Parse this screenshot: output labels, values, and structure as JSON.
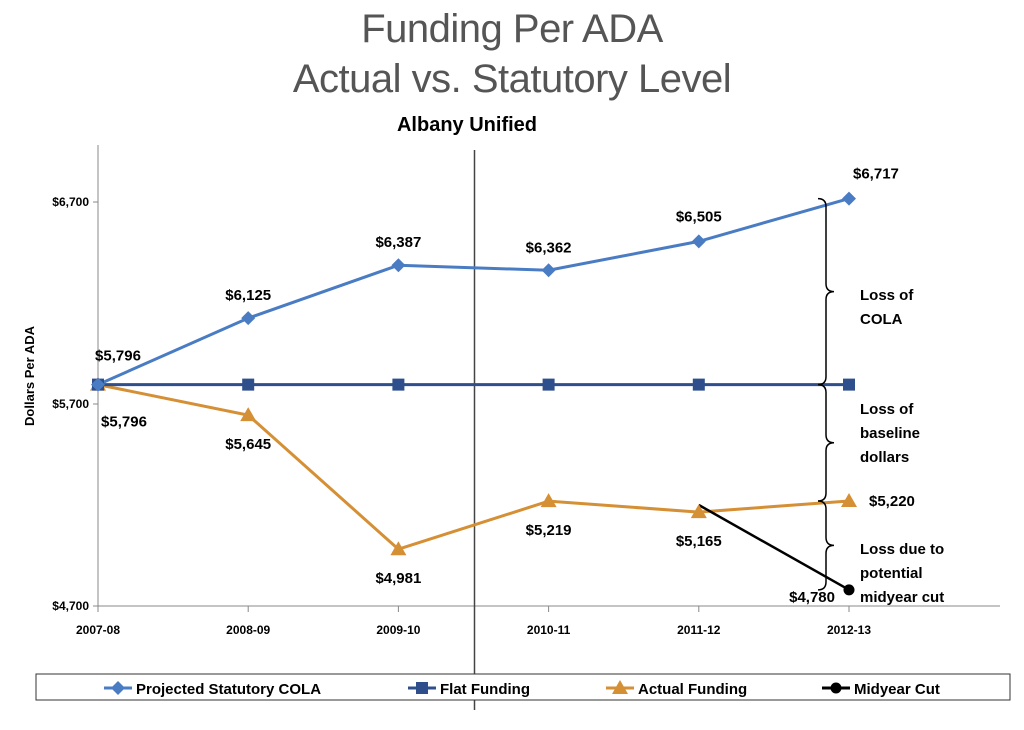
{
  "header": {
    "title_line1": "Funding Per ADA",
    "title_line2": "Actual vs. Statutory Level",
    "subtitle": "Albany Unified"
  },
  "chart_data": {
    "type": "line",
    "title": "Funding Per ADA Actual vs. Statutory Level",
    "subtitle": "Albany Unified",
    "xlabel": "",
    "ylabel": "Dollars Per ADA",
    "categories": [
      "2007-08",
      "2008-09",
      "2009-10",
      "2010-11",
      "2011-12",
      "2012-13"
    ],
    "ylim": [
      4700,
      7000
    ],
    "yticks": [
      4700,
      5700,
      6700
    ],
    "ytick_labels": [
      "$4,700",
      "$5,700",
      "$6,700"
    ],
    "grid": false,
    "legend_position": "bottom",
    "series": [
      {
        "name": "Projected Statutory COLA",
        "color": "#4a7cc4",
        "marker": "diamond",
        "values": [
          5796,
          6125,
          6387,
          6362,
          6505,
          6717
        ],
        "labels": [
          "$5,796",
          "$6,125",
          "$6,387",
          "$6,362",
          "$6,505",
          "$6,717"
        ]
      },
      {
        "name": "Flat Funding",
        "color": "#2e4e8c",
        "marker": "square",
        "values": [
          5796,
          5796,
          5796,
          5796,
          5796,
          5796
        ],
        "labels": []
      },
      {
        "name": "Actual Funding",
        "color": "#d58f35",
        "marker": "triangle",
        "values": [
          5796,
          5645,
          4981,
          5219,
          5165,
          5220
        ],
        "labels": [
          "$5,796",
          "$5,645",
          "$4,981",
          "$5,219",
          "$5,165",
          "$5,220"
        ]
      },
      {
        "name": "Midyear Cut",
        "color": "#000000",
        "marker": "circle",
        "x_start": "2011-12",
        "start_value": 5200,
        "x_end": "2012-13",
        "end_value": 4780,
        "labels": [
          "$4,780"
        ]
      }
    ],
    "vertical_marker_between": [
      "2009-10",
      "2010-11"
    ],
    "annotations": [
      {
        "text_lines": [
          "Loss of",
          "COLA"
        ],
        "from": 5796,
        "to": 6717
      },
      {
        "text_lines": [
          "Loss of",
          "baseline",
          "dollars"
        ],
        "from": 5220,
        "to": 5796
      },
      {
        "text_lines": [
          "Loss due to",
          "potential",
          "midyear cut"
        ],
        "from": 4780,
        "to": 5220
      }
    ]
  }
}
